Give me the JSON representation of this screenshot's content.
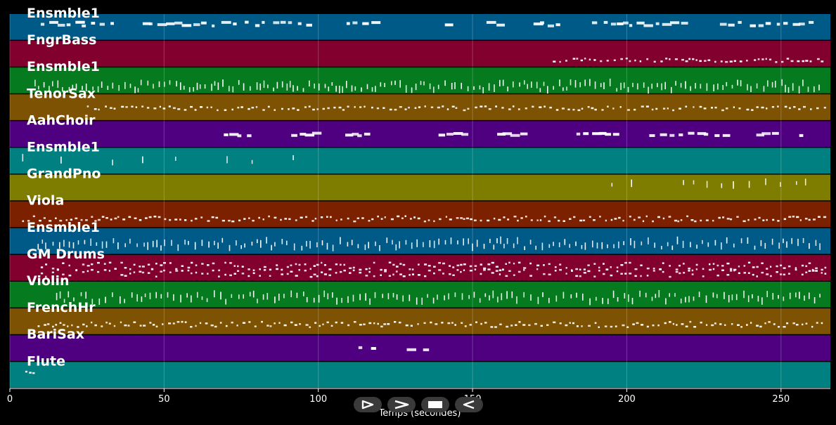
{
  "chart_data": {
    "type": "scatter",
    "xlabel": "Temps (secondes)",
    "xlim": [
      0,
      266
    ],
    "xticks": [
      0,
      50,
      100,
      150,
      200,
      250
    ],
    "grid": true,
    "tracks": [
      {
        "name": "Ensmble1",
        "color": "#005a87",
        "start": 10,
        "end": 264,
        "density": 0.55,
        "rows": 1,
        "style": "bars",
        "pitch": [
          0.3,
          0.45
        ]
      },
      {
        "name": "FngrBass",
        "color": "#82002d",
        "start": 176,
        "end": 264,
        "density": 0.9,
        "rows": 1,
        "style": "dots",
        "pitch": [
          0.65,
          0.8
        ]
      },
      {
        "name": "Ensmble1",
        "color": "#067a1e",
        "start": 8,
        "end": 264,
        "density": 1.0,
        "rows": 1,
        "style": "ticks",
        "pitch": [
          0.55,
          0.85
        ]
      },
      {
        "name": "TenorSax",
        "color": "#7d5202",
        "start": 25,
        "end": 266,
        "density": 0.9,
        "rows": 1,
        "style": "dots",
        "pitch": [
          0.45,
          0.6
        ]
      },
      {
        "name": "AahChoir",
        "color": "#4e0080",
        "start": 63,
        "end": 264,
        "density": 0.6,
        "rows": 1,
        "style": "bars",
        "pitch": [
          0.45,
          0.55
        ]
      },
      {
        "name": "Ensmble1",
        "color": "#008080",
        "start": 4,
        "end": 97,
        "density": 0.12,
        "rows": 1,
        "style": "ticks",
        "pitch": [
          0.35,
          0.55
        ]
      },
      {
        "name": "GrandPno",
        "color": "#7f7d00",
        "start": 195,
        "end": 260,
        "density": 0.35,
        "rows": 1,
        "style": "ticks",
        "pitch": [
          0.25,
          0.45
        ]
      },
      {
        "name": "Viola",
        "color": "#7c2100",
        "start": 4,
        "end": 264,
        "density": 1.0,
        "rows": 1,
        "style": "dots",
        "pitch": [
          0.55,
          0.75
        ]
      },
      {
        "name": "Ensmble1",
        "color": "#005a87",
        "start": 9,
        "end": 264,
        "density": 0.9,
        "rows": 1,
        "style": "ticks",
        "pitch": [
          0.45,
          0.75
        ]
      },
      {
        "name": "GM Drums",
        "color": "#82002d",
        "start": 10,
        "end": 266,
        "density": 1.0,
        "rows": 2,
        "style": "dots",
        "pitch": [
          0.4,
          0.7
        ]
      },
      {
        "name": "Violin",
        "color": "#067a1e",
        "start": 15,
        "end": 264,
        "density": 0.9,
        "rows": 1,
        "style": "ticks",
        "pitch": [
          0.45,
          0.75
        ]
      },
      {
        "name": "FrenchHr",
        "color": "#7d5202",
        "start": 9,
        "end": 264,
        "density": 1.0,
        "rows": 1,
        "style": "dots",
        "pitch": [
          0.5,
          0.7
        ]
      },
      {
        "name": "BariSax",
        "color": "#4e0080",
        "start": 113,
        "end": 138,
        "density": 0.4,
        "rows": 1,
        "style": "bars",
        "pitch": [
          0.45,
          0.55
        ]
      },
      {
        "name": "Flute",
        "color": "#008080",
        "start": 5,
        "end": 8,
        "density": 1.0,
        "rows": 1,
        "style": "dots",
        "pitch": [
          0.35,
          0.45
        ]
      }
    ]
  },
  "controls": [
    {
      "name": "play-button"
    },
    {
      "name": "fast-forward-button"
    },
    {
      "name": "stop-button"
    },
    {
      "name": "rewind-button"
    }
  ]
}
